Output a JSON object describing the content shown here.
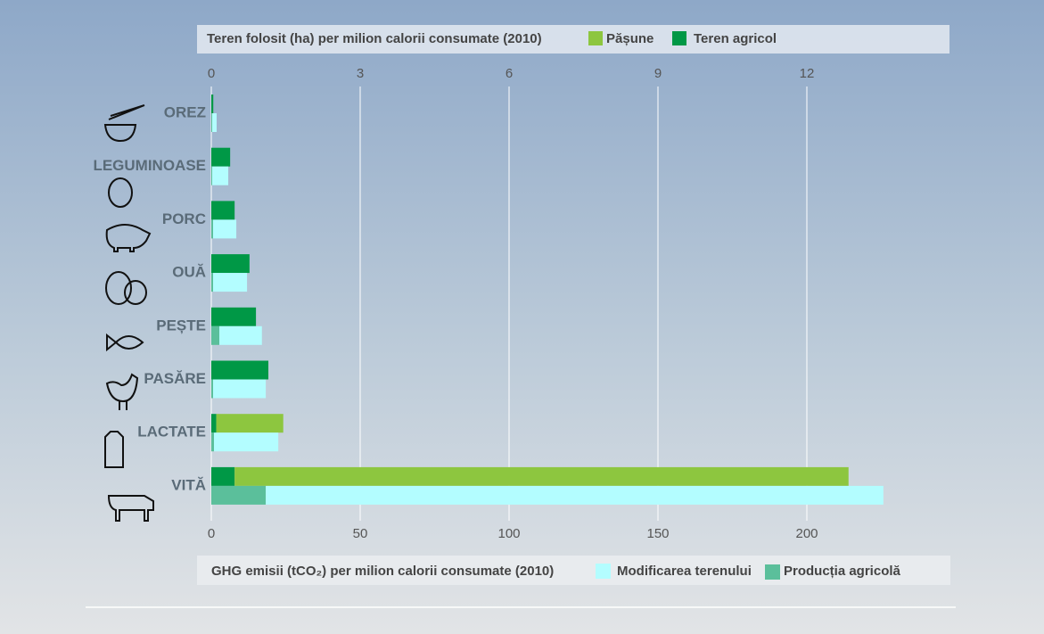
{
  "chart_data": {
    "type": "bar",
    "orientation": "horizontal",
    "title": "Teren folosit (ha) per milion calorii consumate (2010)",
    "x2_title": "GHG emisii (tCO₂) per milion calorii consumate (2010)",
    "categories": [
      "OREZ",
      "LEGUMINOASE",
      "PORC",
      "OUĂ",
      "PEȘTE",
      "PASĂRE",
      "LACTATE",
      "VITĂ"
    ],
    "xlim": [
      0,
      15
    ],
    "xticks": [
      0,
      3,
      6,
      9,
      12
    ],
    "x2lim": [
      0,
      250
    ],
    "x2ticks": [
      0,
      50,
      100,
      150,
      200
    ],
    "grid": true,
    "series": [
      {
        "name": "Pășune",
        "color": "#8dc63f",
        "values": [
          0,
          0,
          0,
          0,
          0,
          0,
          1.35,
          12.37
        ]
      },
      {
        "name": "Teren agricol",
        "color": "#009846",
        "values": [
          0.04,
          0.38,
          0.47,
          0.77,
          0.9,
          1.15,
          0.1,
          0.47
        ]
      },
      {
        "name": "Modificarea terenului",
        "color": "#b3fdff",
        "axis": "x2",
        "values": [
          1.5,
          5.4,
          7.8,
          11.4,
          14.3,
          17.7,
          21.6,
          207.4
        ]
      },
      {
        "name": "Producția agricolă",
        "color": "#5bbf9b",
        "axis": "x2",
        "values": [
          0.3,
          0.3,
          0.6,
          0.6,
          2.7,
          0.6,
          0.9,
          18.3
        ]
      }
    ]
  }
}
